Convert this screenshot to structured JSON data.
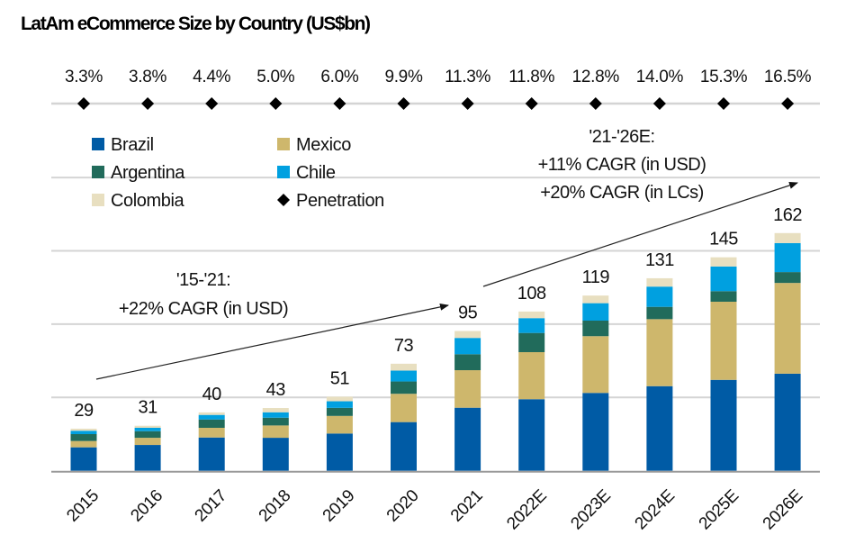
{
  "chart_data": {
    "type": "bar",
    "stacked": true,
    "title": "LatAm eCommerce Size by Country (US$bn)",
    "xlabel": "",
    "ylabel": "",
    "ylim": [
      0,
      200
    ],
    "grid": true,
    "gridline_values": [
      50,
      100,
      150,
      200
    ],
    "categories": [
      "2015",
      "2016",
      "2017",
      "2018",
      "2019",
      "2020",
      "2021",
      "2022E",
      "2023E",
      "2024E",
      "2025E",
      "2026E"
    ],
    "series": [
      {
        "name": "Brazil",
        "color": "#005BA5",
        "values": [
          16.0,
          17.6,
          22.7,
          22.5,
          25.4,
          33.2,
          43.0,
          48.8,
          53.1,
          57.7,
          62.0,
          66.2
        ]
      },
      {
        "name": "Mexico",
        "color": "#CEB76C",
        "values": [
          4.3,
          4.9,
          6.6,
          8.4,
          12.0,
          19.3,
          25.6,
          32.1,
          38.7,
          45.7,
          53.3,
          61.9
        ]
      },
      {
        "name": "Argentina",
        "color": "#216B5B",
        "values": [
          4.7,
          4.5,
          5.7,
          5.3,
          5.5,
          8.4,
          10.9,
          13.1,
          10.6,
          8.4,
          7.2,
          7.4
        ]
      },
      {
        "name": "Chile",
        "color": "#00A0E0",
        "values": [
          2.3,
          2.3,
          3.1,
          3.7,
          4.5,
          7.4,
          11.1,
          10.1,
          11.9,
          13.8,
          16.8,
          19.8
        ]
      },
      {
        "name": "Colombia",
        "color": "#E8DFC0",
        "values": [
          1.4,
          1.4,
          1.7,
          2.9,
          3.1,
          4.7,
          4.7,
          4.5,
          5.2,
          5.7,
          6.3,
          6.8
        ]
      }
    ],
    "totals": [
      "29",
      "31",
      "40",
      "43",
      "51",
      "73",
      "95",
      "108",
      "119",
      "131",
      "145",
      "162"
    ],
    "penetration": {
      "name": "Penetration",
      "marker": "diamond",
      "labels": [
        "3.3%",
        "3.8%",
        "4.4%",
        "5.0%",
        "6.0%",
        "9.9%",
        "11.3%",
        "11.8%",
        "12.8%",
        "14.0%",
        "15.3%",
        "16.5%"
      ],
      "values": [
        3.3,
        3.8,
        4.4,
        5.0,
        6.0,
        9.9,
        11.3,
        11.8,
        12.8,
        14.0,
        15.3,
        16.5
      ]
    },
    "legend": {
      "placement": "top-left",
      "entries": [
        {
          "label": "Brazil",
          "marker": "square",
          "color": "#005BA5"
        },
        {
          "label": "Mexico",
          "marker": "square",
          "color": "#CEB76C"
        },
        {
          "label": "Argentina",
          "marker": "square",
          "color": "#216B5B"
        },
        {
          "label": "Chile",
          "marker": "square",
          "color": "#00A0E0"
        },
        {
          "label": "Colombia",
          "marker": "square",
          "color": "#E8DFC0"
        },
        {
          "label": "Penetration",
          "marker": "diamond",
          "color": "#000000"
        }
      ]
    },
    "annotations": [
      {
        "from": "2015",
        "to": "2021",
        "lines": [
          "'15-'21:",
          "+22% CAGR (in USD)"
        ]
      },
      {
        "from": "2021",
        "to": "2026E",
        "lines": [
          "'21-'26E:",
          "+11% CAGR (in USD)",
          "+20% CAGR (in LCs)"
        ]
      }
    ]
  }
}
